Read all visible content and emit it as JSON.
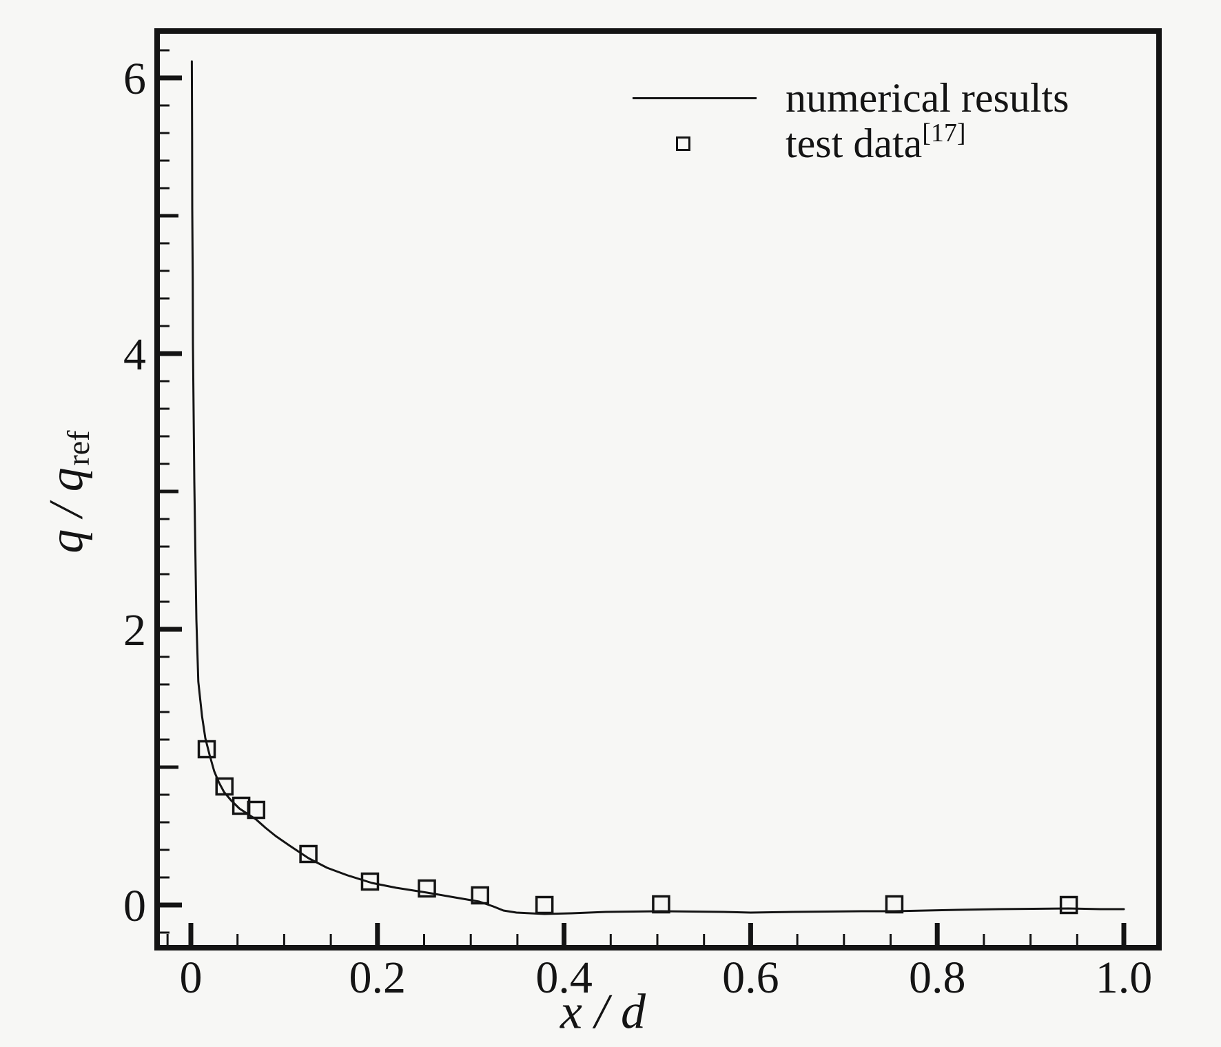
{
  "figure": {
    "background": "#f7f7f5",
    "ink": "#141414"
  },
  "labels": {
    "x_title": {
      "var1": "x",
      "sep": " / ",
      "var2": "d"
    },
    "y_title": {
      "var1": "q",
      "sep": " / ",
      "var2": "q",
      "sub": "ref"
    }
  },
  "legend": {
    "position": "upper-right-inside",
    "items": [
      {
        "sample": "line",
        "label": "numerical results"
      },
      {
        "sample": "open-square",
        "label": "test data",
        "superscript": "[17]"
      }
    ]
  },
  "chart_data": {
    "type": "line",
    "title": "",
    "xlabel": "x / d",
    "ylabel": "q / q_ref",
    "xlim": [
      -0.036,
      1.038
    ],
    "ylim": [
      -0.31,
      6.37
    ],
    "grid": false,
    "legend_position": "upper right inside",
    "x_major_ticks": [
      0,
      0.2,
      0.4,
      0.6,
      0.8,
      1.0
    ],
    "x_tick_labels": [
      "0",
      "0.2",
      "0.4",
      "0.6",
      "0.8",
      "1.0"
    ],
    "x_minor_step": 0.05,
    "x_extra_minor_ticks": [
      -0.025
    ],
    "y_major_ticks": [
      0,
      2,
      4,
      6
    ],
    "y_tick_labels": [
      "0",
      "2",
      "4",
      "6"
    ],
    "y_medium_ticks": [
      1,
      3,
      5
    ],
    "y_minor_step": 0.2,
    "series": [
      {
        "name": "numerical results",
        "type": "line",
        "points": [
          [
            0.001,
            6.12
          ],
          [
            0.0013,
            5.55
          ],
          [
            0.0015,
            5.05
          ],
          [
            0.002,
            4.55
          ],
          [
            0.0022,
            4.07
          ],
          [
            0.0037,
            3.07
          ],
          [
            0.0059,
            2.07
          ],
          [
            0.008,
            1.62
          ],
          [
            0.012,
            1.37
          ],
          [
            0.0155,
            1.21
          ],
          [
            0.02,
            1.09
          ],
          [
            0.025,
            0.97
          ],
          [
            0.03,
            0.89
          ],
          [
            0.0355,
            0.82
          ],
          [
            0.043,
            0.76
          ],
          [
            0.052,
            0.7
          ],
          [
            0.061,
            0.66
          ],
          [
            0.07,
            0.62
          ],
          [
            0.08,
            0.56
          ],
          [
            0.091,
            0.5
          ],
          [
            0.106,
            0.43
          ],
          [
            0.126,
            0.34
          ],
          [
            0.146,
            0.27
          ],
          [
            0.168,
            0.215
          ],
          [
            0.194,
            0.16
          ],
          [
            0.22,
            0.125
          ],
          [
            0.253,
            0.09
          ],
          [
            0.283,
            0.055
          ],
          [
            0.309,
            0.025
          ],
          [
            0.324,
            -0.01
          ],
          [
            0.335,
            -0.04
          ],
          [
            0.349,
            -0.055
          ],
          [
            0.379,
            -0.065
          ],
          [
            0.408,
            -0.06
          ],
          [
            0.445,
            -0.05
          ],
          [
            0.504,
            -0.045
          ],
          [
            0.571,
            -0.05
          ],
          [
            0.6,
            -0.055
          ],
          [
            0.645,
            -0.05
          ],
          [
            0.719,
            -0.045
          ],
          [
            0.754,
            -0.045
          ],
          [
            0.822,
            -0.035
          ],
          [
            0.866,
            -0.03
          ],
          [
            0.941,
            -0.025
          ],
          [
            0.975,
            -0.03
          ],
          [
            1.0,
            -0.03
          ]
        ]
      },
      {
        "name": "test data [17]",
        "type": "scatter",
        "marker": "open-square",
        "points": [
          [
            0.017,
            1.13
          ],
          [
            0.036,
            0.86
          ],
          [
            0.054,
            0.72
          ],
          [
            0.07,
            0.69
          ],
          [
            0.126,
            0.37
          ],
          [
            0.192,
            0.17
          ],
          [
            0.253,
            0.12
          ],
          [
            0.31,
            0.07
          ],
          [
            0.379,
            0.0
          ],
          [
            0.504,
            0.005
          ],
          [
            0.754,
            0.005
          ],
          [
            0.941,
            0.0
          ]
        ]
      }
    ]
  }
}
